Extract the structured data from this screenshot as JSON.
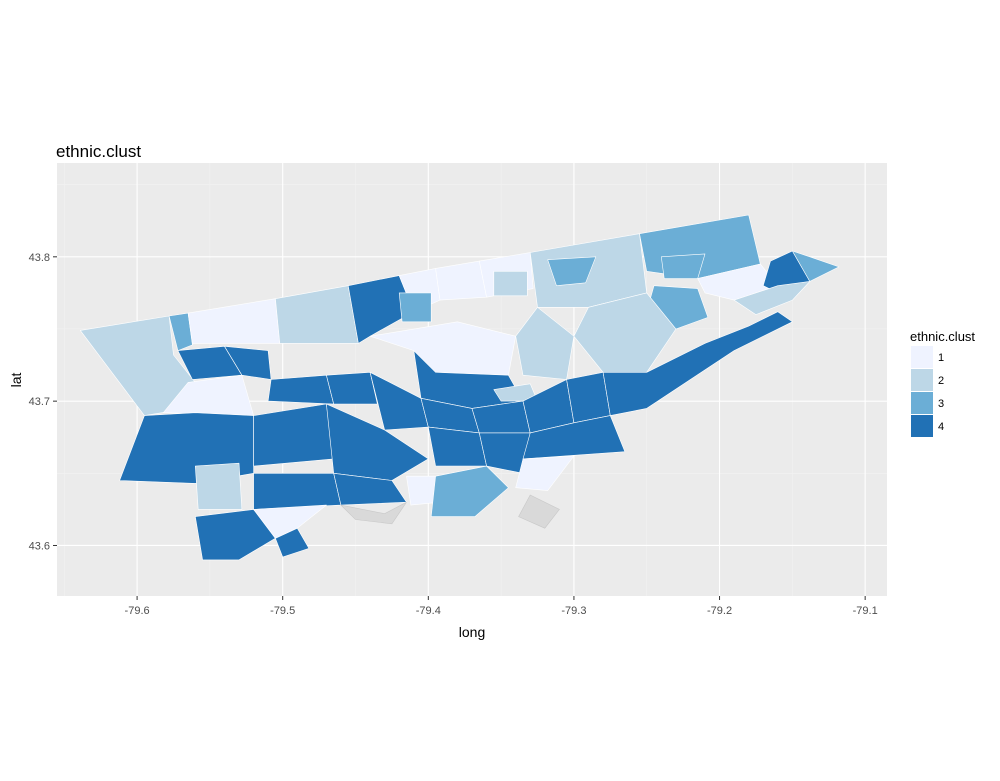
{
  "title": "ethnic.clust",
  "colors": {
    "panel": "#ebebeb",
    "tick_mark": "#333333",
    "1": "#eff3ff",
    "2": "#bdd7e7",
    "3": "#6baed6",
    "4": "#2171b5"
  },
  "chart_data": {
    "type": "choropleth",
    "title": "ethnic.clust",
    "xlabel": "long",
    "ylabel": "lat",
    "xlim": [
      -79.655,
      -79.085
    ],
    "ylim": [
      43.565,
      43.865
    ],
    "x_ticks": [
      -79.6,
      -79.5,
      -79.4,
      -79.3,
      -79.2,
      -79.1
    ],
    "x_tick_labels": [
      "-79.6",
      "-79.5",
      "-79.4",
      "-79.3",
      "-79.2",
      "-79.1"
    ],
    "y_ticks": [
      43.6,
      43.7,
      43.8
    ],
    "y_tick_labels": [
      "43.6",
      "43.7",
      "43.8"
    ],
    "grid": true,
    "legend": {
      "title": "ethnic.clust",
      "position": "right",
      "entries": [
        {
          "label": "1",
          "color": "#eff3ff"
        },
        {
          "label": "2",
          "color": "#bdd7e7"
        },
        {
          "label": "3",
          "color": "#6baed6"
        },
        {
          "label": "4",
          "color": "#2171b5"
        }
      ]
    },
    "regions": [
      {
        "c": "2",
        "pts": [
          [
            -79.639,
            43.749
          ],
          [
            -79.578,
            43.759
          ],
          [
            -79.575,
            43.732
          ],
          [
            -79.56,
            43.713
          ],
          [
            -79.565,
            43.695
          ],
          [
            -79.595,
            43.69
          ]
        ]
      },
      {
        "c": "3",
        "pts": [
          [
            -79.578,
            43.759
          ],
          [
            -79.565,
            43.761
          ],
          [
            -79.562,
            43.739
          ],
          [
            -79.572,
            43.735
          ]
        ]
      },
      {
        "c": "1",
        "pts": [
          [
            -79.565,
            43.761
          ],
          [
            -79.505,
            43.771
          ],
          [
            -79.502,
            43.74
          ],
          [
            -79.562,
            43.74
          ]
        ]
      },
      {
        "c": "2",
        "pts": [
          [
            -79.505,
            43.771
          ],
          [
            -79.455,
            43.78
          ],
          [
            -79.448,
            43.74
          ],
          [
            -79.502,
            43.74
          ]
        ]
      },
      {
        "c": "4",
        "pts": [
          [
            -79.572,
            43.735
          ],
          [
            -79.54,
            43.738
          ],
          [
            -79.528,
            43.718
          ],
          [
            -79.562,
            43.715
          ]
        ]
      },
      {
        "c": "4",
        "pts": [
          [
            -79.54,
            43.738
          ],
          [
            -79.51,
            43.735
          ],
          [
            -79.508,
            43.715
          ],
          [
            -79.528,
            43.718
          ]
        ]
      },
      {
        "c": "1",
        "pts": [
          [
            -79.565,
            43.713
          ],
          [
            -79.528,
            43.718
          ],
          [
            -79.52,
            43.69
          ],
          [
            -79.582,
            43.692
          ]
        ]
      },
      {
        "c": "4",
        "pts": [
          [
            -79.508,
            43.715
          ],
          [
            -79.47,
            43.718
          ],
          [
            -79.465,
            43.698
          ],
          [
            -79.51,
            43.7
          ]
        ]
      },
      {
        "c": "4",
        "pts": [
          [
            -79.47,
            43.718
          ],
          [
            -79.44,
            43.72
          ],
          [
            -79.435,
            43.698
          ],
          [
            -79.465,
            43.698
          ]
        ]
      },
      {
        "c": "4",
        "pts": [
          [
            -79.455,
            43.78
          ],
          [
            -79.42,
            43.787
          ],
          [
            -79.41,
            43.762
          ],
          [
            -79.44,
            43.745
          ],
          [
            -79.448,
            43.74
          ]
        ]
      },
      {
        "c": "1",
        "pts": [
          [
            -79.42,
            43.787
          ],
          [
            -79.395,
            43.792
          ],
          [
            -79.392,
            43.77
          ],
          [
            -79.41,
            43.762
          ]
        ]
      },
      {
        "c": "3",
        "pts": [
          [
            -79.42,
            43.775
          ],
          [
            -79.398,
            43.775
          ],
          [
            -79.398,
            43.755
          ],
          [
            -79.418,
            43.755
          ]
        ]
      },
      {
        "c": "1",
        "pts": [
          [
            -79.395,
            43.792
          ],
          [
            -79.365,
            43.797
          ],
          [
            -79.36,
            43.772
          ],
          [
            -79.392,
            43.77
          ]
        ]
      },
      {
        "c": "1",
        "pts": [
          [
            -79.365,
            43.797
          ],
          [
            -79.33,
            43.803
          ],
          [
            -79.328,
            43.778
          ],
          [
            -79.36,
            43.772
          ]
        ]
      },
      {
        "c": "2",
        "pts": [
          [
            -79.355,
            43.79
          ],
          [
            -79.332,
            43.79
          ],
          [
            -79.332,
            43.773
          ],
          [
            -79.355,
            43.773
          ]
        ]
      },
      {
        "c": "2",
        "pts": [
          [
            -79.33,
            43.803
          ],
          [
            -79.255,
            43.816
          ],
          [
            -79.25,
            43.775
          ],
          [
            -79.29,
            43.765
          ],
          [
            -79.325,
            43.765
          ]
        ]
      },
      {
        "c": "3",
        "pts": [
          [
            -79.318,
            43.798
          ],
          [
            -79.285,
            43.8
          ],
          [
            -79.292,
            43.782
          ],
          [
            -79.312,
            43.78
          ]
        ]
      },
      {
        "c": "3",
        "pts": [
          [
            -79.255,
            43.816
          ],
          [
            -79.18,
            43.829
          ],
          [
            -79.172,
            43.795
          ],
          [
            -79.215,
            43.785
          ],
          [
            -79.25,
            43.79
          ]
        ]
      },
      {
        "c": "3",
        "pts": [
          [
            -79.24,
            43.8
          ],
          [
            -79.21,
            43.802
          ],
          [
            -79.215,
            43.785
          ],
          [
            -79.238,
            43.785
          ]
        ]
      },
      {
        "c": "1",
        "pts": [
          [
            -79.215,
            43.785
          ],
          [
            -79.172,
            43.795
          ],
          [
            -79.16,
            43.78
          ],
          [
            -79.19,
            43.77
          ],
          [
            -79.21,
            43.775
          ]
        ]
      },
      {
        "c": "4",
        "pts": [
          [
            -79.165,
            43.797
          ],
          [
            -79.15,
            43.804
          ],
          [
            -79.138,
            43.783
          ],
          [
            -79.15,
            43.77
          ],
          [
            -79.17,
            43.78
          ]
        ]
      },
      {
        "c": "3",
        "pts": [
          [
            -79.15,
            43.804
          ],
          [
            -79.138,
            43.8
          ],
          [
            -79.118,
            43.793
          ],
          [
            -79.138,
            43.783
          ]
        ]
      },
      {
        "c": "2",
        "pts": [
          [
            -79.16,
            43.78
          ],
          [
            -79.138,
            43.783
          ],
          [
            -79.15,
            43.77
          ],
          [
            -79.175,
            43.76
          ],
          [
            -79.19,
            43.77
          ]
        ]
      },
      {
        "c": "3",
        "pts": [
          [
            -79.245,
            43.78
          ],
          [
            -79.215,
            43.778
          ],
          [
            -79.208,
            43.758
          ],
          [
            -79.23,
            43.75
          ],
          [
            -79.25,
            43.762
          ]
        ]
      },
      {
        "c": "2",
        "pts": [
          [
            -79.29,
            43.765
          ],
          [
            -79.25,
            43.775
          ],
          [
            -79.23,
            43.75
          ],
          [
            -79.25,
            43.72
          ],
          [
            -79.28,
            43.72
          ],
          [
            -79.3,
            43.745
          ]
        ]
      },
      {
        "c": "2",
        "pts": [
          [
            -79.325,
            43.765
          ],
          [
            -79.3,
            43.745
          ],
          [
            -79.305,
            43.715
          ],
          [
            -79.335,
            43.718
          ],
          [
            -79.34,
            43.745
          ]
        ]
      },
      {
        "c": "1",
        "pts": [
          [
            -79.44,
            43.745
          ],
          [
            -79.38,
            43.755
          ],
          [
            -79.34,
            43.745
          ],
          [
            -79.345,
            43.718
          ],
          [
            -79.395,
            43.72
          ],
          [
            -79.41,
            43.735
          ]
        ]
      },
      {
        "c": "4",
        "pts": [
          [
            -79.41,
            43.735
          ],
          [
            -79.395,
            43.72
          ],
          [
            -79.345,
            43.718
          ],
          [
            -79.335,
            43.7
          ],
          [
            -79.37,
            43.695
          ],
          [
            -79.405,
            43.702
          ]
        ]
      },
      {
        "c": "4",
        "pts": [
          [
            -79.44,
            43.72
          ],
          [
            -79.405,
            43.702
          ],
          [
            -79.4,
            43.682
          ],
          [
            -79.43,
            43.68
          ]
        ]
      },
      {
        "c": "4",
        "pts": [
          [
            -79.405,
            43.702
          ],
          [
            -79.37,
            43.695
          ],
          [
            -79.365,
            43.678
          ],
          [
            -79.4,
            43.682
          ]
        ]
      },
      {
        "c": "4",
        "pts": [
          [
            -79.37,
            43.695
          ],
          [
            -79.335,
            43.7
          ],
          [
            -79.33,
            43.678
          ],
          [
            -79.365,
            43.678
          ]
        ]
      },
      {
        "c": "2",
        "pts": [
          [
            -79.355,
            43.708
          ],
          [
            -79.33,
            43.712
          ],
          [
            -79.325,
            43.7
          ],
          [
            -79.35,
            43.7
          ]
        ]
      },
      {
        "c": "4",
        "pts": [
          [
            -79.335,
            43.7
          ],
          [
            -79.305,
            43.715
          ],
          [
            -79.3,
            43.685
          ],
          [
            -79.33,
            43.678
          ]
        ]
      },
      {
        "c": "4",
        "pts": [
          [
            -79.305,
            43.715
          ],
          [
            -79.28,
            43.72
          ],
          [
            -79.275,
            43.69
          ],
          [
            -79.3,
            43.685
          ]
        ]
      },
      {
        "c": "4",
        "pts": [
          [
            -79.28,
            43.72
          ],
          [
            -79.25,
            43.72
          ],
          [
            -79.21,
            43.74
          ],
          [
            -79.18,
            43.752
          ],
          [
            -79.16,
            43.762
          ],
          [
            -79.15,
            43.755
          ],
          [
            -79.19,
            43.735
          ],
          [
            -79.22,
            43.715
          ],
          [
            -79.25,
            43.695
          ],
          [
            -79.275,
            43.69
          ]
        ]
      },
      {
        "c": "4",
        "pts": [
          [
            -79.595,
            43.69
          ],
          [
            -79.56,
            43.692
          ],
          [
            -79.52,
            43.69
          ],
          [
            -79.52,
            43.65
          ],
          [
            -79.56,
            43.643
          ],
          [
            -79.612,
            43.645
          ]
        ]
      },
      {
        "c": "2",
        "pts": [
          [
            -79.56,
            43.655
          ],
          [
            -79.53,
            43.657
          ],
          [
            -79.528,
            43.625
          ],
          [
            -79.558,
            43.625
          ]
        ]
      },
      {
        "c": "4",
        "pts": [
          [
            -79.52,
            43.69
          ],
          [
            -79.47,
            43.698
          ],
          [
            -79.465,
            43.66
          ],
          [
            -79.52,
            43.655
          ]
        ]
      },
      {
        "c": "4",
        "pts": [
          [
            -79.47,
            43.698
          ],
          [
            -79.43,
            43.68
          ],
          [
            -79.4,
            43.66
          ],
          [
            -79.425,
            43.645
          ],
          [
            -79.465,
            43.65
          ]
        ]
      },
      {
        "c": "4",
        "pts": [
          [
            -79.52,
            43.65
          ],
          [
            -79.465,
            43.65
          ],
          [
            -79.46,
            43.628
          ],
          [
            -79.52,
            43.625
          ]
        ]
      },
      {
        "c": "4",
        "pts": [
          [
            -79.465,
            43.65
          ],
          [
            -79.425,
            43.645
          ],
          [
            -79.415,
            43.63
          ],
          [
            -79.46,
            43.628
          ]
        ]
      },
      {
        "c": "1",
        "pts": [
          [
            -79.415,
            43.648
          ],
          [
            -79.395,
            43.648
          ],
          [
            -79.392,
            43.63
          ],
          [
            -79.412,
            43.628
          ]
        ]
      },
      {
        "c": "4",
        "pts": [
          [
            -79.4,
            43.682
          ],
          [
            -79.365,
            43.678
          ],
          [
            -79.36,
            43.655
          ],
          [
            -79.395,
            43.655
          ]
        ]
      },
      {
        "c": "4",
        "pts": [
          [
            -79.365,
            43.678
          ],
          [
            -79.33,
            43.678
          ],
          [
            -79.335,
            43.65
          ],
          [
            -79.36,
            43.655
          ]
        ]
      },
      {
        "c": "3",
        "pts": [
          [
            -79.395,
            43.648
          ],
          [
            -79.36,
            43.655
          ],
          [
            -79.345,
            43.64
          ],
          [
            -79.368,
            43.62
          ],
          [
            -79.398,
            43.62
          ]
        ]
      },
      {
        "c": "4",
        "pts": [
          [
            -79.33,
            43.678
          ],
          [
            -79.3,
            43.685
          ],
          [
            -79.275,
            43.69
          ],
          [
            -79.265,
            43.665
          ],
          [
            -79.335,
            43.66
          ]
        ]
      },
      {
        "c": "1",
        "pts": [
          [
            -79.335,
            43.66
          ],
          [
            -79.3,
            43.662
          ],
          [
            -79.318,
            43.638
          ],
          [
            -79.34,
            43.64
          ]
        ]
      },
      {
        "c": "4",
        "pts": [
          [
            -79.56,
            43.62
          ],
          [
            -79.52,
            43.625
          ],
          [
            -79.505,
            43.605
          ],
          [
            -79.53,
            43.59
          ],
          [
            -79.555,
            43.59
          ]
        ]
      },
      {
        "c": "1",
        "pts": [
          [
            -79.52,
            43.625
          ],
          [
            -79.47,
            43.628
          ],
          [
            -79.49,
            43.612
          ],
          [
            -79.505,
            43.605
          ]
        ]
      },
      {
        "c": "4",
        "pts": [
          [
            -79.505,
            43.605
          ],
          [
            -79.49,
            43.612
          ],
          [
            -79.482,
            43.598
          ],
          [
            -79.5,
            43.592
          ]
        ]
      }
    ],
    "coast": [
      [
        [
          -79.46,
          43.628
        ],
        [
          -79.43,
          43.622
        ],
        [
          -79.415,
          43.63
        ],
        [
          -79.425,
          43.615
        ],
        [
          -79.45,
          43.618
        ]
      ],
      [
        [
          -79.33,
          43.635
        ],
        [
          -79.31,
          43.625
        ],
        [
          -79.32,
          43.612
        ],
        [
          -79.338,
          43.62
        ]
      ]
    ]
  }
}
